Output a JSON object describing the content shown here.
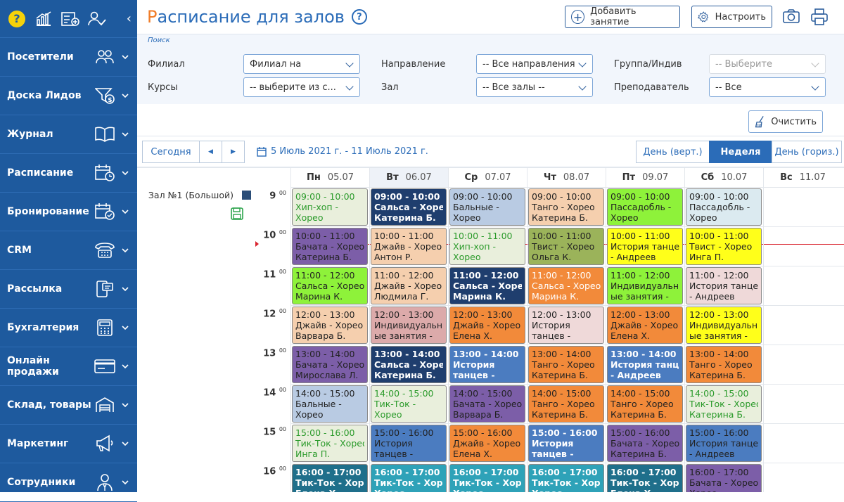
{
  "sidebar": {
    "items": [
      {
        "label": "Посетители",
        "icon": "users-icon"
      },
      {
        "label": "Доска Лидов",
        "icon": "funnel-dollar-icon"
      },
      {
        "label": "Журнал",
        "icon": "book-icon"
      },
      {
        "label": "Расписание",
        "icon": "calendar-clock-icon"
      },
      {
        "label": "Бронирование",
        "icon": "calendar-check-icon"
      },
      {
        "label": "CRM",
        "icon": "phone-icon"
      },
      {
        "label": "Рассылка",
        "icon": "mobile-message-icon"
      },
      {
        "label": "Бухгалтерия",
        "icon": "calculator-icon"
      },
      {
        "label": "Онлайн продажи",
        "icon": "credit-card-icon"
      },
      {
        "label": "Склад, товары",
        "icon": "warehouse-icon"
      },
      {
        "label": "Маркетинг",
        "icon": "megaphone-icon"
      },
      {
        "label": "Сотрудники",
        "icon": "employee-icon"
      }
    ]
  },
  "header": {
    "title_first": "Р",
    "title_rest": "асписание для залов",
    "add_label": "Добавить занятие",
    "settings_label": "Настроить"
  },
  "filters": {
    "search_label": "Поиск",
    "branch_label": "Филиал",
    "branch_value": "Филиал на",
    "courses_label": "Курсы",
    "courses_value": "-- выберите из с...",
    "direction_label": "Направление",
    "direction_value": "-- Все направления",
    "hall_label": "Зал",
    "hall_value": "-- Все залы --",
    "group_label": "Группа/Индив",
    "group_value": "-- Выберите",
    "teacher_label": "Преподаватель",
    "teacher_value": "-- Все",
    "clear_label": "Очистить"
  },
  "nav": {
    "today": "Сегодня",
    "prev": "◀",
    "next": "▶",
    "range": "5 Июль 2021 г. - 11 Июль 2021 г.",
    "view_day_vert": "День (верт.)",
    "view_week": "Неделя",
    "view_day_horiz": "День (гориз.)"
  },
  "hall": {
    "name": "Зал №1 (Большой)"
  },
  "days": [
    {
      "name": "Пн",
      "date": "05.07"
    },
    {
      "name": "Вт",
      "date": "06.07"
    },
    {
      "name": "Ср",
      "date": "07.07"
    },
    {
      "name": "Чт",
      "date": "08.07"
    },
    {
      "name": "Пт",
      "date": "09.07"
    },
    {
      "name": "Сб",
      "date": "10.07"
    },
    {
      "name": "Вс",
      "date": "11.07"
    }
  ],
  "hours": [
    "9",
    "10",
    "11",
    "12",
    "13",
    "14",
    "15",
    "16"
  ],
  "hours_suffix": "00",
  "events": [
    {
      "d": 0,
      "h": 0,
      "t": [
        "09:00 - 10:00",
        "Хип-хоп -",
        "Хорео"
      ],
      "bg": "#e9efdc",
      "fg": "#2a9a2a",
      "bold": false
    },
    {
      "d": 1,
      "h": 0,
      "t": [
        "09:00 - 10:00",
        "Сальса - Хорео",
        "Катерина Б."
      ],
      "bg": "#1f3e6e",
      "fg": "#ffffff",
      "bold": true
    },
    {
      "d": 2,
      "h": 0,
      "t": [
        "09:00 - 10:00",
        "Бальные -",
        "Хорео"
      ],
      "bg": "#b9cbe3",
      "fg": "#222",
      "bold": false
    },
    {
      "d": 3,
      "h": 0,
      "t": [
        "09:00 - 10:00",
        "Танго - Хорео",
        "Катерина Б."
      ],
      "bg": "#f5cfae",
      "fg": "#222",
      "bold": false
    },
    {
      "d": 4,
      "h": 0,
      "t": [
        "09:00 - 10:00",
        "Пассадобль -",
        "Хорео"
      ],
      "bg": "#8ef23a",
      "fg": "#222",
      "bold": false
    },
    {
      "d": 5,
      "h": 0,
      "t": [
        "09:00 - 10:00",
        "Пассадобль -",
        "Хорео"
      ],
      "bg": "#dbeaf0",
      "fg": "#222",
      "bold": false
    },
    {
      "d": 0,
      "h": 1,
      "t": [
        "10:00 - 11:00",
        "Бачата - Хорео",
        "Катерина Б."
      ],
      "bg": "#7c5ea8",
      "fg": "#222",
      "bold": false
    },
    {
      "d": 1,
      "h": 1,
      "t": [
        "10:00 - 11:00",
        "Джайв - Хорео",
        "Антон Р."
      ],
      "bg": "#f5cfae",
      "fg": "#222",
      "bold": false
    },
    {
      "d": 2,
      "h": 1,
      "t": [
        "10:00 - 11:00",
        "Хип-хоп -",
        "Хорео"
      ],
      "bg": "#e9efdc",
      "fg": "#2a9a2a",
      "bold": false
    },
    {
      "d": 3,
      "h": 1,
      "t": [
        "10:00 - 11:00",
        "Твист - Хорео",
        "Ольга К."
      ],
      "bg": "#9bb35a",
      "fg": "#222",
      "bold": false
    },
    {
      "d": 4,
      "h": 1,
      "t": [
        "10:00 - 11:00",
        "История танцев",
        "- Андреев"
      ],
      "bg": "#ffff1a",
      "fg": "#222",
      "bold": false
    },
    {
      "d": 5,
      "h": 1,
      "t": [
        "10:00 - 11:00",
        "Твист - Хорео",
        "Инга П."
      ],
      "bg": "#ffff1a",
      "fg": "#222",
      "bold": false
    },
    {
      "d": 0,
      "h": 2,
      "t": [
        "11:00 - 12:00",
        "Сальса - Хорео",
        "Марина К."
      ],
      "bg": "#8ef23a",
      "fg": "#222",
      "bold": false
    },
    {
      "d": 1,
      "h": 2,
      "t": [
        "11:00 - 12:00",
        "Джайв - Хорео",
        "Людмила Г."
      ],
      "bg": "#f5cfae",
      "fg": "#222",
      "bold": false
    },
    {
      "d": 2,
      "h": 2,
      "t": [
        "11:00 - 12:00",
        "Сальса - Хорео",
        "Марина К."
      ],
      "bg": "#1f3e6e",
      "fg": "#ffffff",
      "bold": true
    },
    {
      "d": 3,
      "h": 2,
      "t": [
        "11:00 - 12:00",
        "Сальса - Хорео",
        "Марина К."
      ],
      "bg": "#f28a3a",
      "fg": "#ffffff",
      "bold": false
    },
    {
      "d": 4,
      "h": 2,
      "t": [
        "11:00 - 12:00",
        "Индивидуальн",
        "ые занятия -"
      ],
      "bg": "#8ef23a",
      "fg": "#222",
      "bold": false
    },
    {
      "d": 5,
      "h": 2,
      "t": [
        "11:00 - 12:00",
        "История танцев",
        "- Андреев"
      ],
      "bg": "#efd9d9",
      "fg": "#222",
      "bold": false
    },
    {
      "d": 0,
      "h": 3,
      "t": [
        "12:00 - 13:00",
        "Джайв - Хорео",
        "Варвара Б."
      ],
      "bg": "#f5cfae",
      "fg": "#222",
      "bold": false
    },
    {
      "d": 1,
      "h": 3,
      "t": [
        "12:00 - 13:00",
        "Индивидуальн",
        "ые занятия -"
      ],
      "bg": "#dcaaaa",
      "fg": "#222",
      "bold": false
    },
    {
      "d": 2,
      "h": 3,
      "t": [
        "12:00 - 13:00",
        "Джайв - Хорео",
        "Елена Х."
      ],
      "bg": "#f28a3a",
      "fg": "#222",
      "bold": false
    },
    {
      "d": 3,
      "h": 3,
      "t": [
        "12:00 - 13:00",
        "История",
        "танцев -"
      ],
      "bg": "#efd9d9",
      "fg": "#222",
      "bold": false
    },
    {
      "d": 4,
      "h": 3,
      "t": [
        "12:00 - 13:00",
        "Джайв - Хорео",
        "Елена Х."
      ],
      "bg": "#f28a3a",
      "fg": "#222",
      "bold": false
    },
    {
      "d": 5,
      "h": 3,
      "t": [
        "12:00 - 13:00",
        "Индивидуальн",
        "ые занятия -"
      ],
      "bg": "#ffff1a",
      "fg": "#222",
      "bold": false
    },
    {
      "d": 0,
      "h": 4,
      "t": [
        "13:00 - 14:00",
        "Бачата - Хорео",
        "Мирослава Л."
      ],
      "bg": "#7c5ea8",
      "fg": "#222",
      "bold": false
    },
    {
      "d": 1,
      "h": 4,
      "t": [
        "13:00 - 14:00",
        "Сальса - Хорео",
        "Катерина Б."
      ],
      "bg": "#1f3e6e",
      "fg": "#ffffff",
      "bold": true
    },
    {
      "d": 2,
      "h": 4,
      "t": [
        "13:00 - 14:00",
        "История",
        "танцев -"
      ],
      "bg": "#4b7cc0",
      "fg": "#ffffff",
      "bold": true
    },
    {
      "d": 3,
      "h": 4,
      "t": [
        "13:00 - 14:00",
        "Танго - Хорео",
        "Катерина Б."
      ],
      "bg": "#f28a3a",
      "fg": "#222",
      "bold": false
    },
    {
      "d": 4,
      "h": 4,
      "t": [
        "13:00 - 14:00",
        "История танцев",
        "- Андреев"
      ],
      "bg": "#4b7cc0",
      "fg": "#ffffff",
      "bold": true
    },
    {
      "d": 5,
      "h": 4,
      "t": [
        "13:00 - 14:00",
        "Танго - Хорео",
        "Катерина Б."
      ],
      "bg": "#f28a3a",
      "fg": "#222",
      "bold": false
    },
    {
      "d": 0,
      "h": 5,
      "t": [
        "14:00 - 15:00",
        "Бальные -",
        "Хорео"
      ],
      "bg": "#b9cbe3",
      "fg": "#222",
      "bold": false
    },
    {
      "d": 1,
      "h": 5,
      "t": [
        "14:00 - 15:00",
        "Тик-Ток -",
        "Хорео"
      ],
      "bg": "#e9efdc",
      "fg": "#2a9a2a",
      "bold": false
    },
    {
      "d": 2,
      "h": 5,
      "t": [
        "14:00 - 15:00",
        "Бачата - Хорео",
        "Варвара Б."
      ],
      "bg": "#7c5ea8",
      "fg": "#222",
      "bold": false
    },
    {
      "d": 3,
      "h": 5,
      "t": [
        "14:00 - 15:00",
        "Танго - Хорео",
        "Катерина Б."
      ],
      "bg": "#f28a3a",
      "fg": "#222",
      "bold": false
    },
    {
      "d": 4,
      "h": 5,
      "t": [
        "14:00 - 15:00",
        "Танго - Хорео",
        "Катерина Б."
      ],
      "bg": "#f28a3a",
      "fg": "#222",
      "bold": false
    },
    {
      "d": 5,
      "h": 5,
      "t": [
        "14:00 - 15:00",
        "Тик-Ток - Хорео",
        "Катерина Б."
      ],
      "bg": "#e9efdc",
      "fg": "#2a9a2a",
      "bold": false
    },
    {
      "d": 0,
      "h": 6,
      "t": [
        "15:00 - 16:00",
        "Тик-Ток - Хорео",
        "Инга П."
      ],
      "bg": "#e9efdc",
      "fg": "#2a9a2a",
      "bold": false
    },
    {
      "d": 1,
      "h": 6,
      "t": [
        "15:00 - 16:00",
        "История",
        "танцев -"
      ],
      "bg": "#4b7cc0",
      "fg": "#222",
      "bold": false
    },
    {
      "d": 2,
      "h": 6,
      "t": [
        "15:00 - 16:00",
        "Джайв - Хорео",
        "Елена Х."
      ],
      "bg": "#f28a3a",
      "fg": "#222",
      "bold": false
    },
    {
      "d": 3,
      "h": 6,
      "t": [
        "15:00 - 16:00",
        "История",
        "танцев -"
      ],
      "bg": "#4b7cc0",
      "fg": "#ffffff",
      "bold": true
    },
    {
      "d": 4,
      "h": 6,
      "t": [
        "15:00 - 16:00",
        "Бачата - Хорео",
        "Катерина Б."
      ],
      "bg": "#7c5ea8",
      "fg": "#222",
      "bold": false
    },
    {
      "d": 5,
      "h": 6,
      "t": [
        "15:00 - 16:00",
        "История танцев",
        "- Андреев"
      ],
      "bg": "#4b7cc0",
      "fg": "#222",
      "bold": false
    },
    {
      "d": 0,
      "h": 7,
      "t": [
        "16:00 - 17:00",
        "Тик-Ток - Хорео",
        "Елена Х."
      ],
      "bg": "#1f6f8b",
      "fg": "#ffffff",
      "bold": true
    },
    {
      "d": 1,
      "h": 7,
      "t": [
        "16:00 - 17:00",
        "Тик-Ток - Хорео",
        "Хорео"
      ],
      "bg": "#2ea2b8",
      "fg": "#ffffff",
      "bold": true
    },
    {
      "d": 2,
      "h": 7,
      "t": [
        "16:00 - 17:00",
        "Тик-Ток - Хорео",
        "Хорео"
      ],
      "bg": "#2ea2b8",
      "fg": "#ffffff",
      "bold": true
    },
    {
      "d": 3,
      "h": 7,
      "t": [
        "16:00 - 17:00",
        "Тик-Ток - Хорео",
        "Хорео"
      ],
      "bg": "#2ea2b8",
      "fg": "#ffffff",
      "bold": true
    },
    {
      "d": 4,
      "h": 7,
      "t": [
        "16:00 - 17:00",
        "Тик-Ток - Хорео",
        "Елена Х."
      ],
      "bg": "#1f6f8b",
      "fg": "#ffffff",
      "bold": true
    },
    {
      "d": 5,
      "h": 7,
      "t": [
        "16:00 - 17:00",
        "Бачата - Хорео",
        "Хорео"
      ],
      "bg": "#7c5ea8",
      "fg": "#222",
      "bold": false
    }
  ],
  "colors": {
    "brand": "#1e5a9e",
    "accent": "#f07c28",
    "link": "#2b6cb8",
    "active_view": "#2b6cb8",
    "now_line": "#d9232e"
  }
}
